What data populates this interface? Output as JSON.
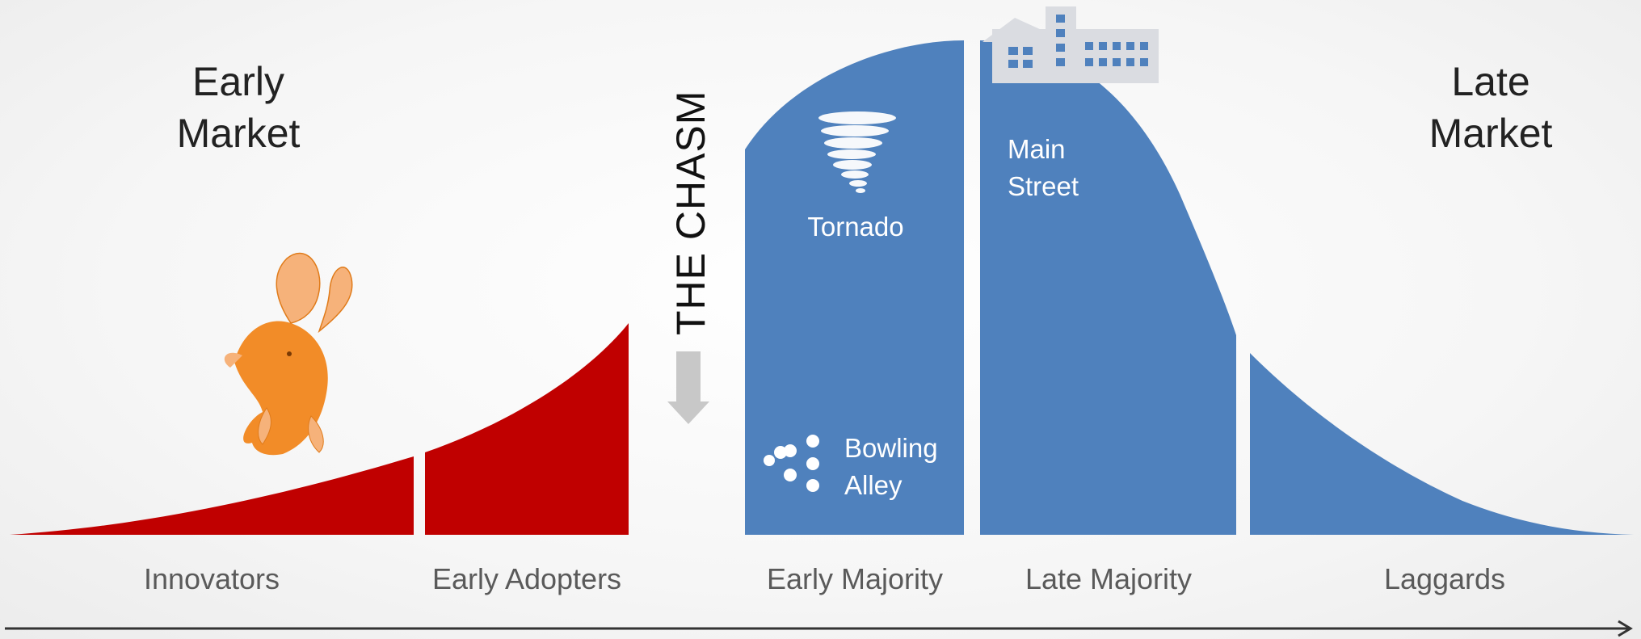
{
  "headings": {
    "early_market": [
      "Early",
      "Market"
    ],
    "late_market": [
      "Late",
      "Market"
    ]
  },
  "chasm_label": "THE CHASM",
  "segments": [
    {
      "label": "Innovators",
      "color": "#c00000"
    },
    {
      "label": "Early Adopters",
      "color": "#c00000"
    },
    {
      "label": "Early Majority",
      "color": "#4f81bd"
    },
    {
      "label": "Late Majority",
      "color": "#4f81bd"
    },
    {
      "label": "Laggards",
      "color": "#4f81bd"
    }
  ],
  "inner_labels": {
    "tornado": "Tornado",
    "main_street": [
      "Main",
      "Street"
    ],
    "bowling_alley": [
      "Bowling",
      "Alley"
    ]
  },
  "icons": {
    "goldfish": "goldfish-icon",
    "tornado": "tornado-icon",
    "building": "building-icon",
    "bowling": "bowling-pins-icon",
    "chasm_arrow": "arrow-down-icon",
    "time_axis": "arrow-right-icon"
  },
  "colors": {
    "early_market": "#c00000",
    "mainstream": "#4f81bd",
    "goldfish": "#f28c28",
    "building": "#dadce1",
    "arrow": "#c8c8c8"
  }
}
